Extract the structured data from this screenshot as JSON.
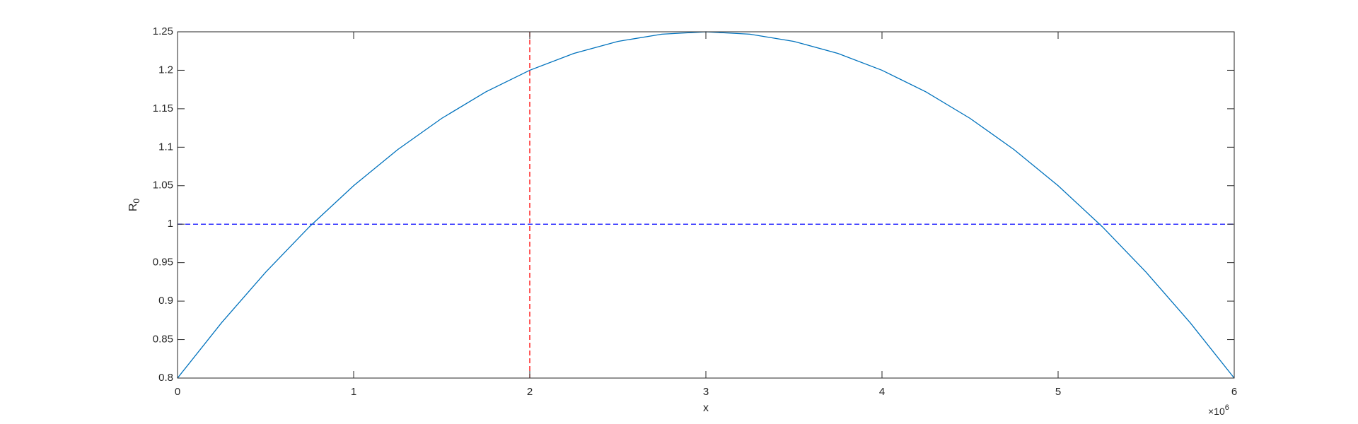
{
  "chart_data": {
    "type": "line",
    "xlabel": "x",
    "ylabel": "R",
    "ylabel_subscript": "0",
    "x_multiplier": "×10",
    "x_multiplier_exponent": "6",
    "x": [
      0,
      0.25,
      0.5,
      0.75,
      1,
      1.25,
      1.5,
      1.75,
      2,
      2.25,
      2.5,
      2.75,
      3,
      3.25,
      3.5,
      3.75,
      4,
      4.25,
      4.5,
      4.75,
      5,
      5.25,
      5.5,
      5.75,
      6
    ],
    "series": [
      {
        "color": "#0072bd",
        "values": [
          0.8,
          0.8719,
          0.9375,
          0.9969,
          1.05,
          1.0969,
          1.1375,
          1.1719,
          1.2,
          1.2219,
          1.2375,
          1.2469,
          1.25,
          1.2469,
          1.2375,
          1.2219,
          1.2,
          1.1719,
          1.1375,
          1.0969,
          1.05,
          0.9969,
          0.9375,
          0.8719,
          0.8
        ]
      }
    ],
    "reference_lines": [
      {
        "axis": "y",
        "value": 1,
        "color": "#0000ff"
      },
      {
        "axis": "x",
        "value": 2,
        "color": "#ff0000"
      }
    ],
    "xlim": [
      0,
      6
    ],
    "xticks": [
      0,
      1,
      2,
      3,
      4,
      5,
      6
    ],
    "ylim": [
      0.8,
      1.25
    ],
    "yticks": [
      0.8,
      0.85,
      0.9,
      0.95,
      1,
      1.05,
      1.1,
      1.15,
      1.2,
      1.25
    ],
    "grid": false
  }
}
